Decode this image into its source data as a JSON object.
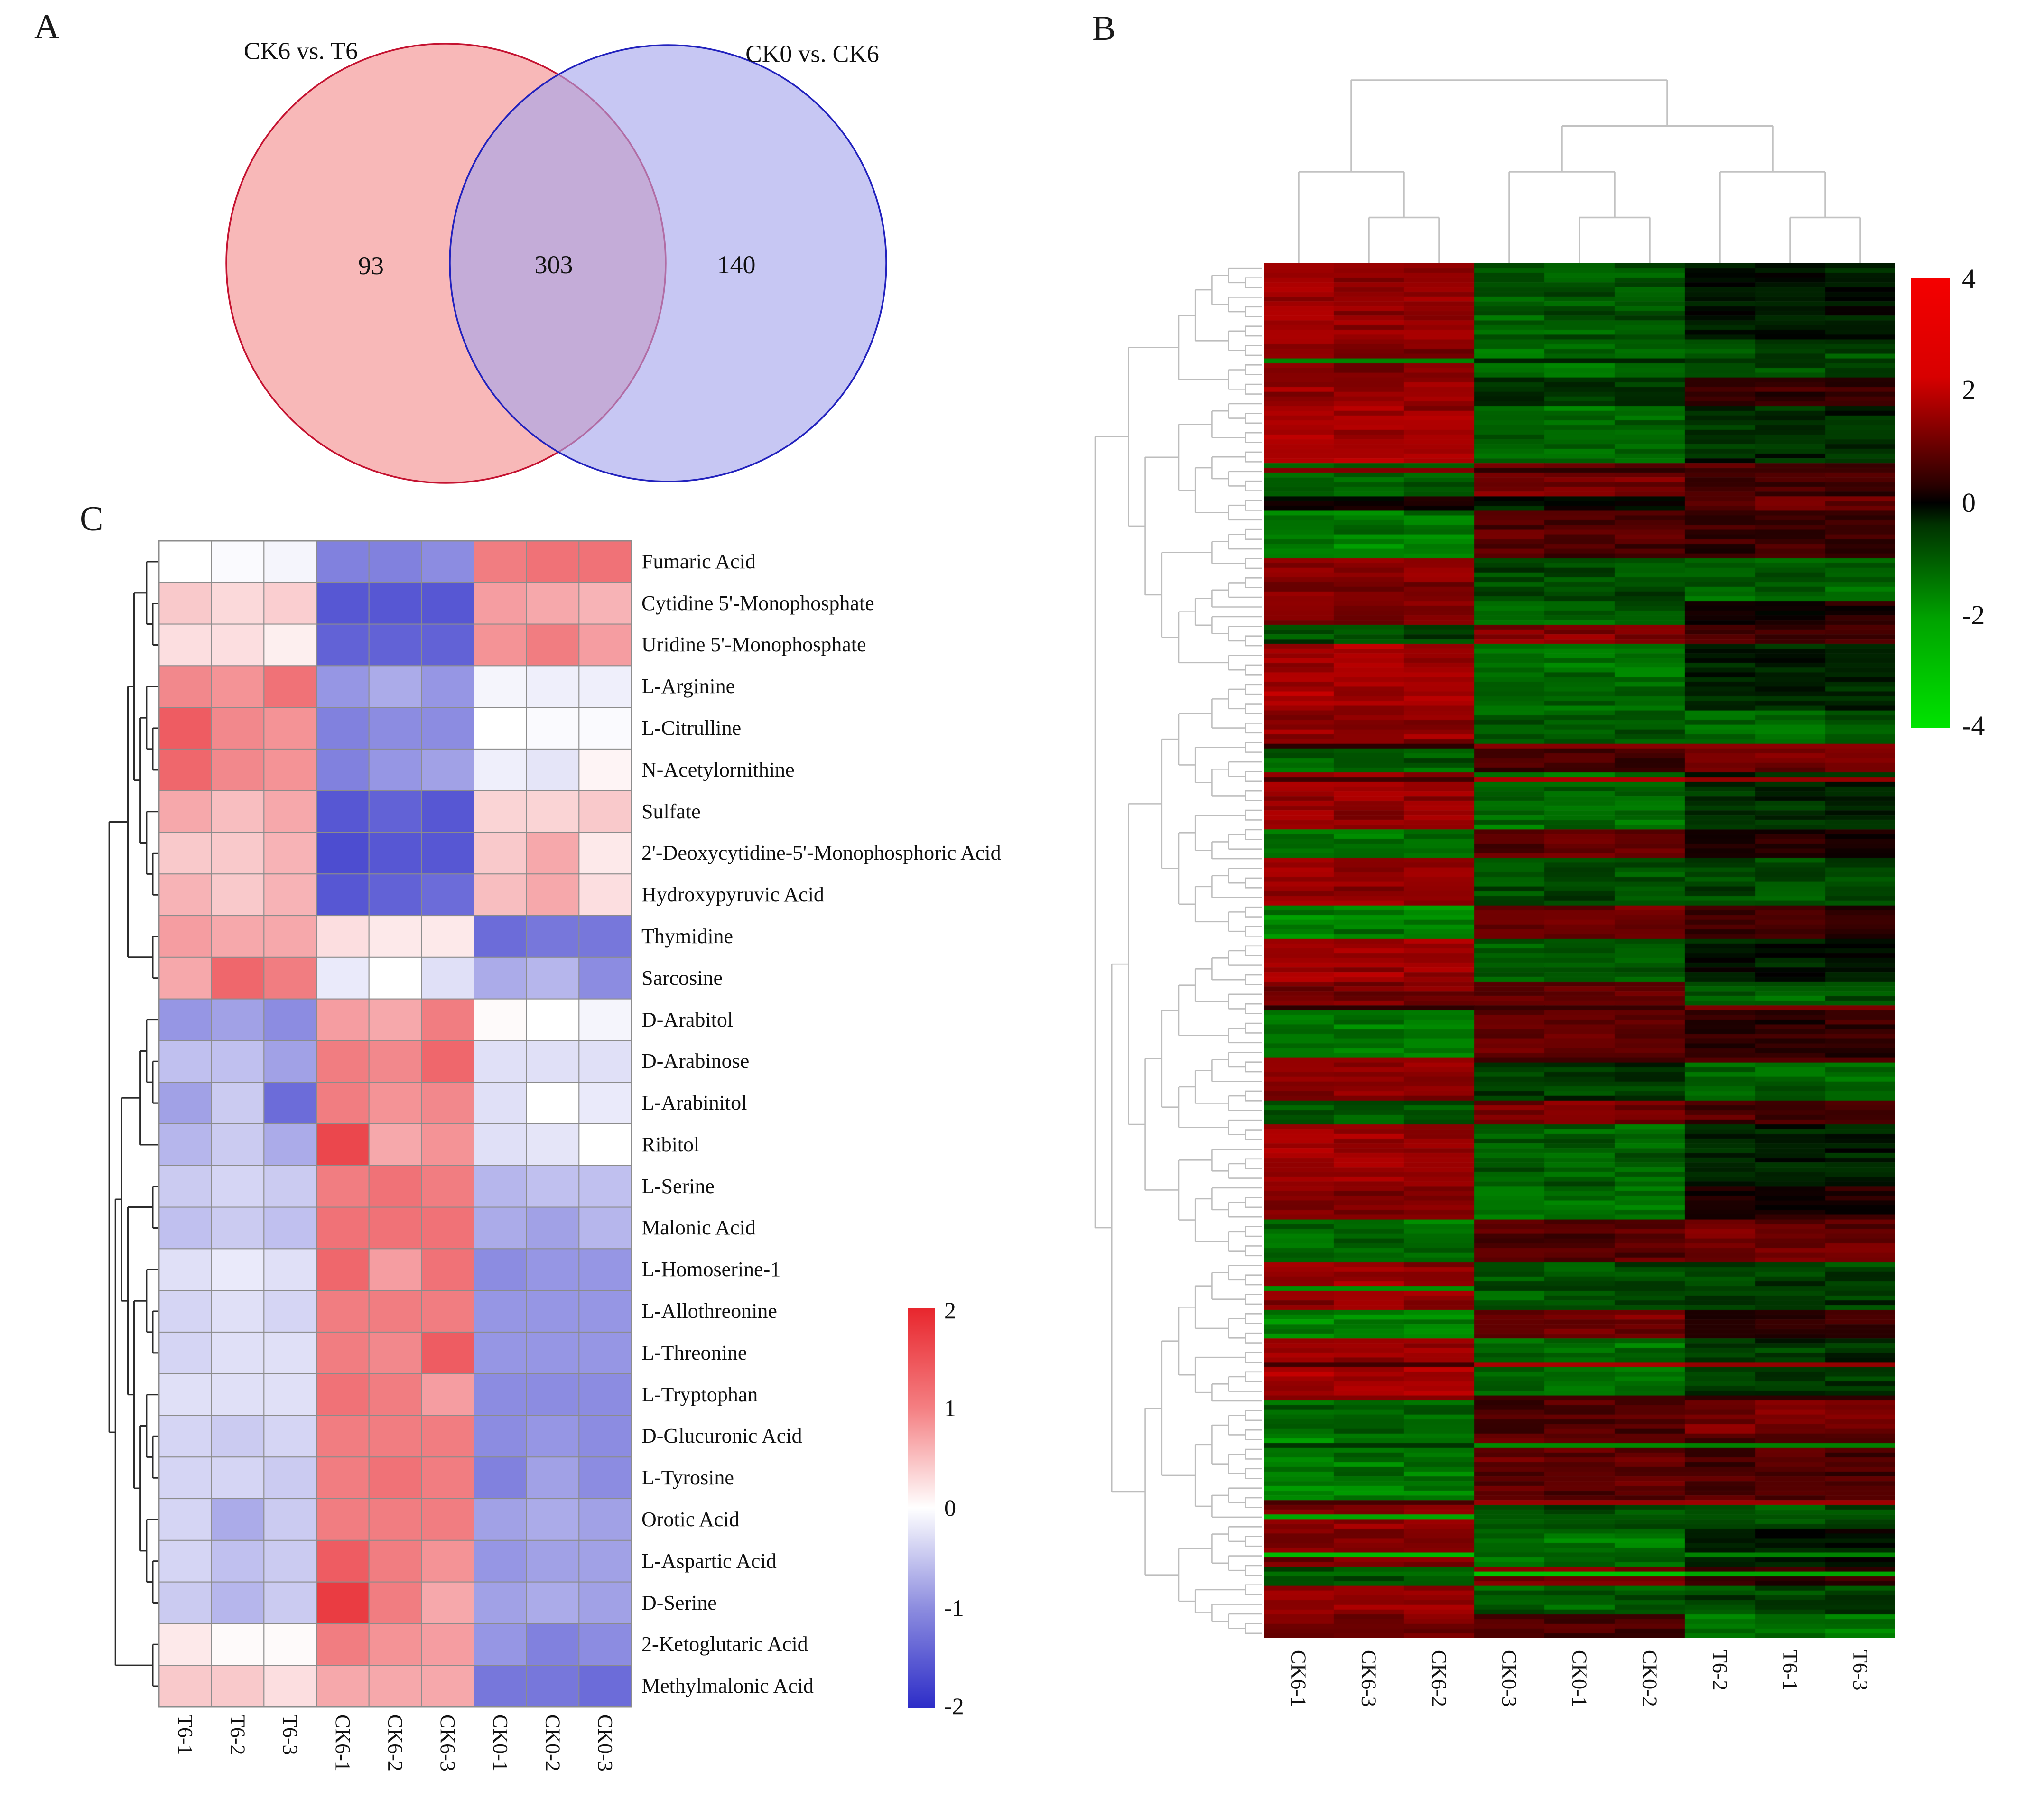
{
  "chart_data": [
    {
      "type": "venn",
      "panel": "A",
      "sets": [
        {
          "label": "CK6 vs. T6",
          "unique_count": "93",
          "fill": "#f59c9c",
          "stroke": "#c41230"
        },
        {
          "label": "CK0 vs. CK6",
          "unique_count": "140",
          "fill": "#a5a5ec",
          "stroke": "#2121bd"
        }
      ],
      "overlap_count": "303"
    },
    {
      "type": "heatmap",
      "panel": "B",
      "columns": [
        "CK6-1",
        "CK6-3",
        "CK6-2",
        "CK0-3",
        "CK0-1",
        "CK0-2",
        "T6-2",
        "T6-1",
        "T6-3"
      ],
      "column_groups": [
        "CK6",
        "CK0",
        "T6"
      ],
      "colorscale": {
        "ticks": [
          "4",
          "2",
          "0",
          "-2",
          "-4"
        ],
        "range": [
          -4,
          4
        ],
        "positive": "#ff0000",
        "zero": "#000000",
        "negative": "#00dd00"
      },
      "rows_total": 289,
      "row_blocks_note": "each block = [n_rows, CK6_value, CK0_value, T6_value] estimated from pixels",
      "row_blocks": [
        [
          16,
          2.6,
          -1.5,
          -0.3
        ],
        [
          8,
          2.2,
          -1.9,
          -1.2
        ],
        [
          6,
          2.5,
          -0.9,
          0.8
        ],
        [
          12,
          2.7,
          -1.7,
          -0.7
        ],
        [
          7,
          -1.7,
          1.9,
          1.2
        ],
        [
          3,
          0.2,
          -0.4,
          1.8
        ],
        [
          10,
          -2.1,
          1.4,
          0.9
        ],
        [
          9,
          2.3,
          -1.2,
          -1.6
        ],
        [
          5,
          2.1,
          -1.7,
          0.4
        ],
        [
          4,
          -1.3,
          2.3,
          1.1
        ],
        [
          14,
          2.8,
          -1.9,
          -0.5
        ],
        [
          8,
          2.4,
          -1.5,
          -1.7
        ],
        [
          5,
          -1.6,
          1.2,
          2.0
        ],
        [
          12,
          2.6,
          -1.8,
          -0.8
        ],
        [
          6,
          -1.9,
          1.6,
          0.6
        ],
        [
          10,
          2.5,
          -1.3,
          -1.2
        ],
        [
          7,
          -2.2,
          1.8,
          1.0
        ],
        [
          9,
          2.7,
          -1.6,
          -0.4
        ],
        [
          6,
          2.0,
          1.5,
          -1.5
        ],
        [
          11,
          -2.0,
          1.7,
          0.8
        ],
        [
          8,
          2.4,
          -1.0,
          -1.8
        ],
        [
          5,
          -1.5,
          2.1,
          1.3
        ],
        [
          13,
          2.6,
          -1.7,
          -0.6
        ],
        [
          7,
          2.2,
          -1.9,
          0.5
        ],
        [
          9,
          -1.8,
          1.5,
          1.8
        ],
        [
          10,
          2.5,
          -1.4,
          -1.0
        ],
        [
          6,
          -2.3,
          1.9,
          0.7
        ],
        [
          12,
          2.7,
          -1.8,
          -0.9
        ],
        [
          8,
          -1.6,
          1.3,
          2.1
        ],
        [
          14,
          -2.1,
          1.6,
          1.2
        ],
        [
          6,
          2.3,
          -1.2,
          -1.4
        ],
        [
          8,
          2.1,
          -2.0,
          -0.3
        ],
        [
          4,
          -1.4,
          2.2,
          0.9
        ],
        [
          6,
          2.5,
          -1.5,
          -1.1
        ],
        [
          5,
          1.9,
          1.2,
          -2.0
        ]
      ],
      "top_dendrogram": [
        [
          0,
          [
            1,
            2
          ]
        ],
        [
          [
            3,
            [
              4,
              5
            ]
          ],
          [
            6,
            [
              7,
              8
            ]
          ]
        ]
      ]
    },
    {
      "type": "heatmap",
      "panel": "C",
      "columns": [
        "T6-1",
        "T6-2",
        "T6-3",
        "CK6-1",
        "CK6-2",
        "CK6-3",
        "CK0-1",
        "CK0-2",
        "CK0-3"
      ],
      "rows": [
        "Fumaric Acid",
        "Cytidine 5'-Monophosphate",
        "Uridine 5'-Monophosphate",
        "L-Arginine",
        "L-Citrulline",
        "N-Acetylornithine",
        "Sulfate",
        "2'-Deoxycytidine-5'-Monophosphoric Acid",
        "Hydroxypyruvic Acid",
        "Thymidine",
        "Sarcosine",
        "D-Arabitol",
        "D-Arabinose",
        "L-Arabinitol",
        "Ribitol",
        "L-Serine",
        "Malonic Acid",
        "L-Homoserine-1",
        "L-Allothreonine",
        "L-Threonine",
        "L-Tryptophan",
        "D-Glucuronic Acid",
        "L-Tyrosine",
        "Orotic Acid",
        "L-Aspartic Acid",
        "D-Serine",
        "2-Ketoglutaric Acid",
        "Methylmalonic Acid"
      ],
      "values": [
        [
          0.0,
          -0.05,
          -0.1,
          -1.2,
          -1.2,
          -1.1,
          1.2,
          1.3,
          1.3
        ],
        [
          0.5,
          0.35,
          0.45,
          -1.6,
          -1.6,
          -1.6,
          0.9,
          0.8,
          0.7
        ],
        [
          0.3,
          0.3,
          0.15,
          -1.5,
          -1.5,
          -1.5,
          1.0,
          1.2,
          0.9
        ],
        [
          1.1,
          1.0,
          1.3,
          -1.0,
          -0.8,
          -1.0,
          -0.1,
          -0.15,
          -0.15
        ],
        [
          1.5,
          1.1,
          1.0,
          -1.2,
          -1.1,
          -1.1,
          0.0,
          -0.05,
          -0.05
        ],
        [
          1.4,
          1.1,
          1.0,
          -1.2,
          -1.0,
          -0.9,
          -0.15,
          -0.25,
          0.1
        ],
        [
          0.8,
          0.6,
          0.8,
          -1.6,
          -1.5,
          -1.6,
          0.4,
          0.4,
          0.5
        ],
        [
          0.5,
          0.5,
          0.7,
          -1.7,
          -1.6,
          -1.6,
          0.5,
          0.8,
          0.2
        ],
        [
          0.7,
          0.5,
          0.7,
          -1.6,
          -1.5,
          -1.4,
          0.6,
          0.8,
          0.3
        ],
        [
          0.9,
          0.8,
          0.8,
          0.3,
          0.2,
          0.2,
          -1.4,
          -1.3,
          -1.3
        ],
        [
          0.8,
          1.4,
          1.2,
          -0.2,
          0.0,
          -0.3,
          -0.8,
          -0.7,
          -1.1
        ],
        [
          -1.0,
          -0.9,
          -1.1,
          0.9,
          0.8,
          1.2,
          0.05,
          0.0,
          -0.1
        ],
        [
          -0.6,
          -0.6,
          -0.9,
          1.2,
          1.1,
          1.4,
          -0.3,
          -0.3,
          -0.3
        ],
        [
          -0.9,
          -0.5,
          -1.4,
          1.2,
          1.0,
          1.1,
          -0.3,
          0.0,
          -0.2
        ],
        [
          -0.7,
          -0.5,
          -0.8,
          1.7,
          0.8,
          1.0,
          -0.3,
          -0.25,
          0.0
        ],
        [
          -0.5,
          -0.4,
          -0.5,
          1.2,
          1.3,
          1.2,
          -0.7,
          -0.6,
          -0.6
        ],
        [
          -0.6,
          -0.5,
          -0.6,
          1.3,
          1.3,
          1.3,
          -0.8,
          -0.9,
          -0.7
        ],
        [
          -0.3,
          -0.2,
          -0.3,
          1.4,
          0.9,
          1.3,
          -1.1,
          -1.0,
          -1.0
        ],
        [
          -0.4,
          -0.3,
          -0.4,
          1.2,
          1.2,
          1.2,
          -1.0,
          -1.0,
          -1.0
        ],
        [
          -0.4,
          -0.3,
          -0.3,
          1.2,
          1.1,
          1.5,
          -1.0,
          -1.0,
          -1.0
        ],
        [
          -0.3,
          -0.3,
          -0.3,
          1.3,
          1.2,
          0.9,
          -1.1,
          -1.1,
          -1.1
        ],
        [
          -0.4,
          -0.5,
          -0.4,
          1.2,
          1.2,
          1.2,
          -1.1,
          -1.0,
          -1.1
        ],
        [
          -0.4,
          -0.4,
          -0.5,
          1.2,
          1.3,
          1.2,
          -1.2,
          -0.9,
          -1.1
        ],
        [
          -0.4,
          -0.8,
          -0.5,
          1.2,
          1.2,
          1.2,
          -0.9,
          -0.8,
          -0.9
        ],
        [
          -0.4,
          -0.6,
          -0.5,
          1.5,
          1.2,
          1.0,
          -1.0,
          -0.9,
          -0.9
        ],
        [
          -0.5,
          -0.7,
          -0.5,
          1.8,
          1.2,
          0.8,
          -0.9,
          -0.8,
          -0.9
        ],
        [
          0.2,
          0.05,
          0.05,
          1.2,
          1.0,
          0.9,
          -1.0,
          -1.2,
          -1.1
        ],
        [
          0.5,
          0.5,
          0.3,
          0.8,
          0.8,
          0.8,
          -1.3,
          -1.3,
          -1.4
        ]
      ],
      "colorscale": {
        "ticks": [
          "2",
          "1",
          "0",
          "-1",
          "-2"
        ],
        "range": [
          -2,
          2
        ],
        "positive": "#e8262d",
        "zero": "#ffffff",
        "negative": "#2d2dc8"
      },
      "row_dendrogram": [
        [
          [
            [
              0,
              [
                1,
                2
              ]
            ],
            [
              [
                3,
                [
                  4,
                  5
                ]
              ],
              [
                6,
                [
                  7,
                  8
                ]
              ]
            ]
          ],
          [
            9,
            10
          ]
        ],
        [
          [
            [
              [
                11,
                [
                  12,
                  13
                ]
              ],
              14
            ],
            [
              [
                15,
                16
              ],
              [
                [
                  17,
                  [
                    18,
                    19
                  ]
                ],
                [
                  [
                    20,
                    [
                      21,
                      22
                    ]
                  ],
                  [
                    23,
                    [
                      24,
                      25
                    ]
                  ]
                ]
              ]
            ]
          ],
          [
            26,
            27
          ]
        ]
      ]
    }
  ]
}
